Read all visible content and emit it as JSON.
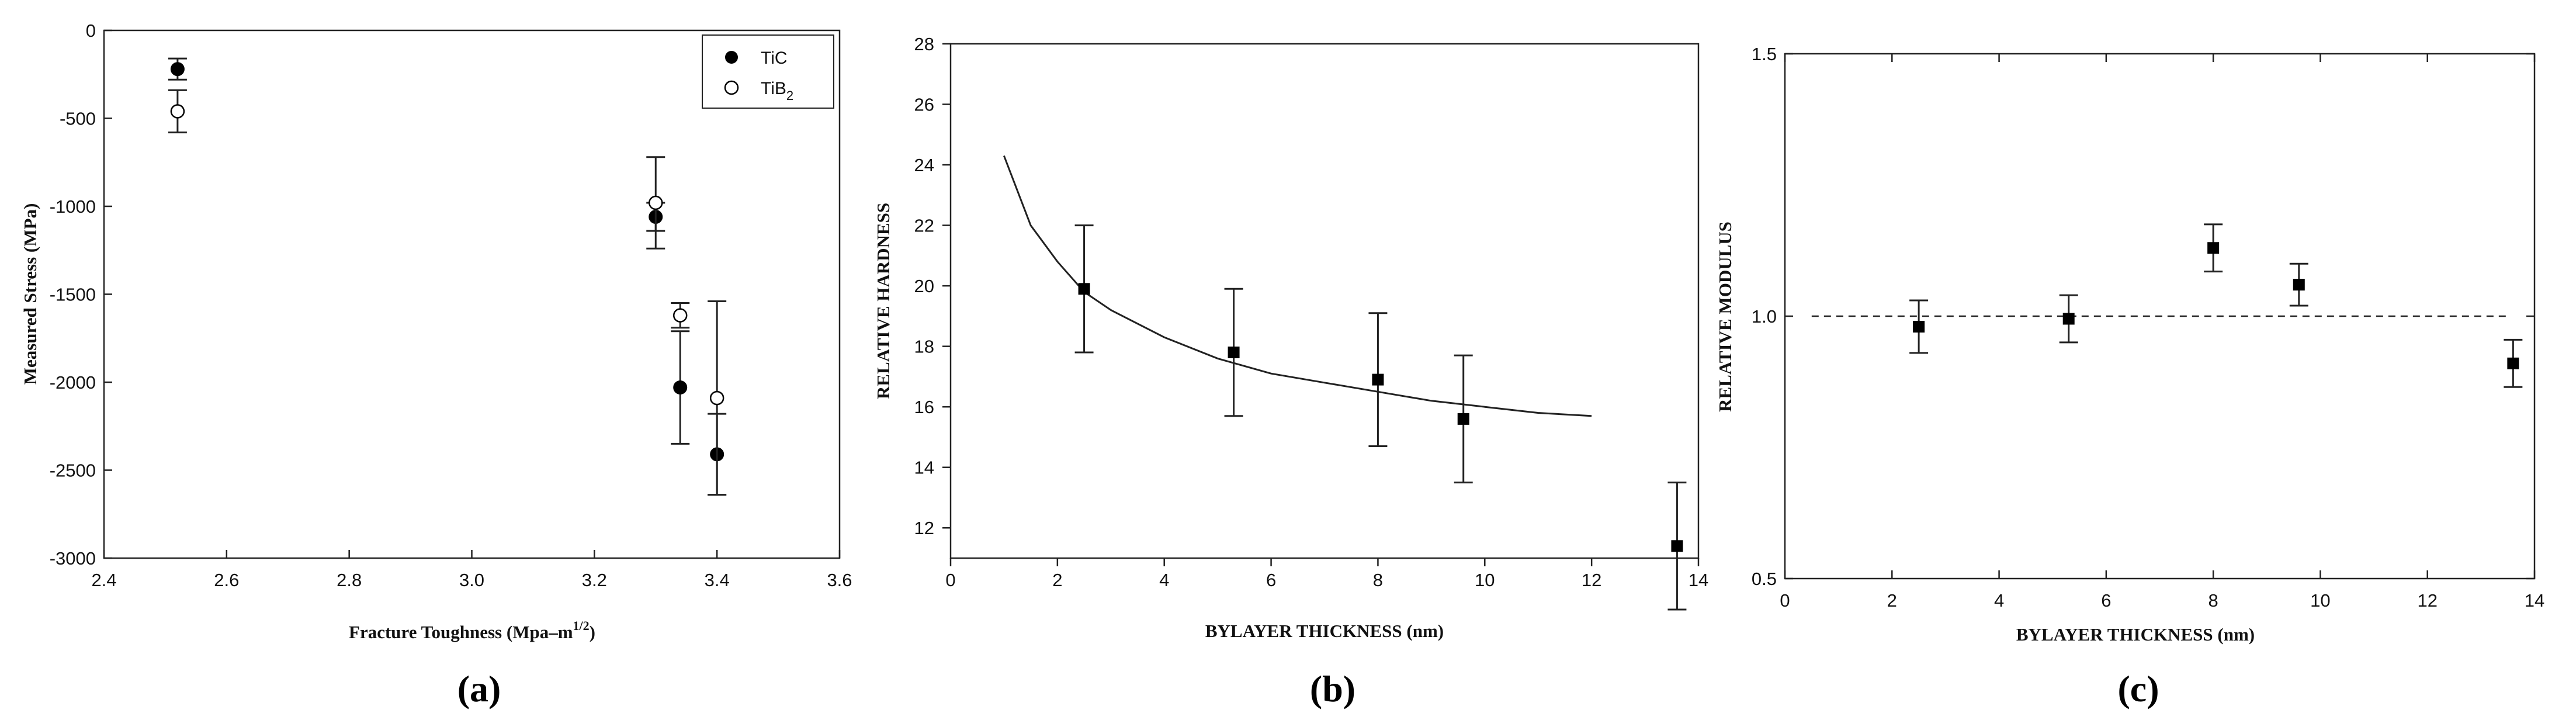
{
  "chart_data": [
    {
      "type": "scatter",
      "panel_label": "(a)",
      "xlabel": "Fracture Toughness (Mpa–m",
      "xlabel_sup": "1/2",
      "xlabel_end": ")",
      "ylabel": "Measured Stress (MPa)",
      "xlim": [
        2.4,
        3.6
      ],
      "ylim": [
        -3000,
        0
      ],
      "xticks": [
        "2.4",
        "2.6",
        "2.8",
        "3.0",
        "3.2",
        "3.4",
        "3.6"
      ],
      "yticks": [
        "0",
        "-500",
        "-1000",
        "-1500",
        "-2000",
        "-2500",
        "-3000"
      ],
      "legend_position": "top-right",
      "series": [
        {
          "name": "TiC",
          "marker": "filled-circle",
          "points": [
            {
              "x": 2.52,
              "y": -220,
              "err": 60
            },
            {
              "x": 3.3,
              "y": -1060,
              "err": 80
            },
            {
              "x": 3.34,
              "y": -2030,
              "err": 320
            },
            {
              "x": 3.4,
              "y": -2410,
              "err": 230
            }
          ]
        },
        {
          "name": "TiB",
          "name_sub": "2",
          "marker": "open-circle",
          "points": [
            {
              "x": 2.52,
              "y": -460,
              "err": 120
            },
            {
              "x": 3.3,
              "y": -980,
              "err": 260
            },
            {
              "x": 3.34,
              "y": -1620,
              "err": 70
            },
            {
              "x": 3.4,
              "y": -2090,
              "err": 550
            }
          ]
        }
      ]
    },
    {
      "type": "scatter",
      "panel_label": "(b)",
      "xlabel": "BYLAYER THICKNESS (nm)",
      "ylabel": "RELATIVE HARDNESS",
      "xlim": [
        0,
        14
      ],
      "ylim": [
        11,
        28
      ],
      "xticks": [
        "0",
        "2",
        "4",
        "6",
        "8",
        "10",
        "12",
        "14"
      ],
      "yticks": [
        "12",
        "14",
        "16",
        "18",
        "20",
        "22",
        "24",
        "26",
        "28"
      ],
      "points": [
        {
          "x": 2.5,
          "y": 19.9,
          "err": 2.1
        },
        {
          "x": 5.3,
          "y": 17.8,
          "err": 2.1
        },
        {
          "x": 8.0,
          "y": 16.9,
          "err": 2.2
        },
        {
          "x": 9.6,
          "y": 15.6,
          "err": 2.1
        },
        {
          "x": 13.6,
          "y": 11.4,
          "err": 2.1
        }
      ],
      "fit_curve": {
        "label": "fit",
        "x": [
          1.0,
          1.5,
          2.0,
          2.5,
          3.0,
          4.0,
          5.0,
          6.0,
          7.0,
          8.0,
          9.0,
          10.0,
          11.0,
          12.0
        ],
        "y": [
          24.3,
          22.0,
          20.8,
          19.8,
          19.2,
          18.3,
          17.6,
          17.1,
          16.8,
          16.5,
          16.2,
          16.0,
          15.8,
          15.7
        ]
      }
    },
    {
      "type": "scatter",
      "panel_label": "(c)",
      "xlabel": "BYLAYER THICKNESS (nm)",
      "ylabel": "RELATIVE MODULUS",
      "xlim": [
        0,
        14
      ],
      "ylim": [
        0.5,
        1.5
      ],
      "xticks": [
        "0",
        "2",
        "4",
        "6",
        "8",
        "10",
        "12",
        "14"
      ],
      "yticks": [
        "0.5",
        "1.0",
        "1.5"
      ],
      "reference_line": {
        "y": 1.0,
        "x_from": 0.5,
        "x_to": 13.5,
        "style": "dashed"
      },
      "points": [
        {
          "x": 2.5,
          "y": 0.98,
          "err": 0.05
        },
        {
          "x": 5.3,
          "y": 0.995,
          "err": 0.045
        },
        {
          "x": 8.0,
          "y": 1.13,
          "err": 0.045
        },
        {
          "x": 9.6,
          "y": 1.06,
          "err": 0.04
        },
        {
          "x": 13.6,
          "y": 0.91,
          "err": 0.045
        }
      ]
    }
  ]
}
